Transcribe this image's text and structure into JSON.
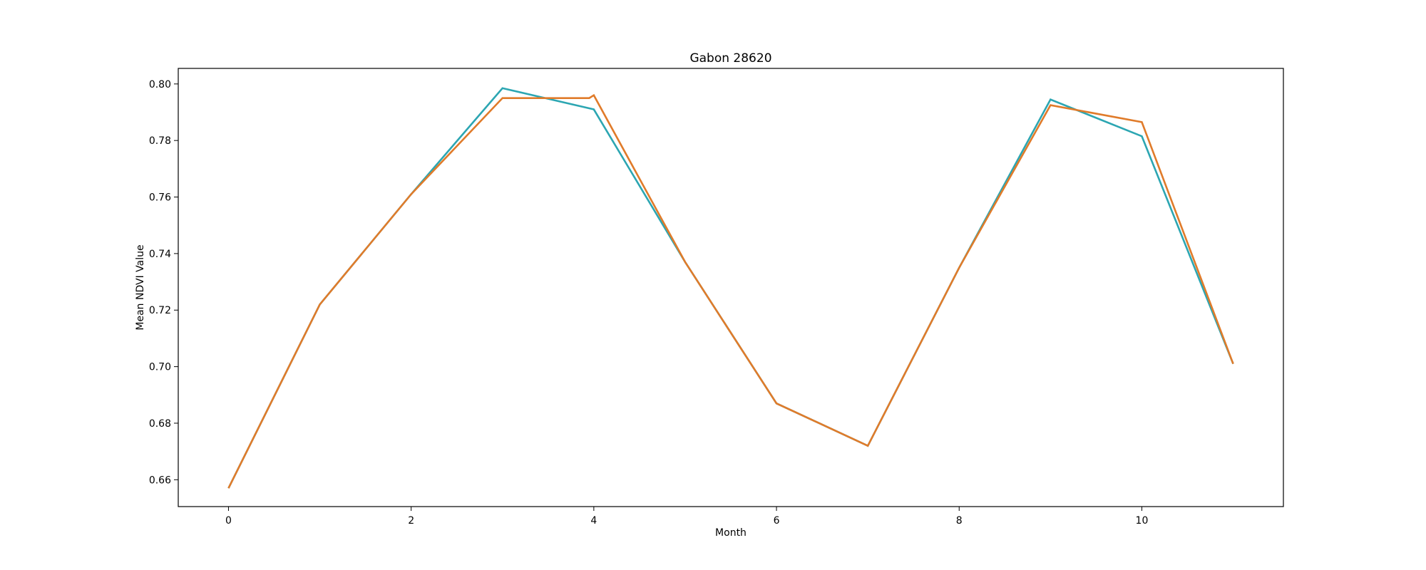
{
  "chart_data": {
    "type": "line",
    "title": "Gabon 28620",
    "xlabel": "Month",
    "ylabel": "Mean NDVI Value",
    "xlim": [
      -0.55,
      11.55
    ],
    "ylim": [
      0.6505,
      0.8055
    ],
    "xticks": [
      0,
      2,
      4,
      6,
      8,
      10
    ],
    "yticks": [
      0.66,
      0.68,
      0.7,
      0.72,
      0.74,
      0.76,
      0.78,
      0.8
    ],
    "ytick_labels": [
      "0.66",
      "0.68",
      "0.70",
      "0.72",
      "0.74",
      "0.76",
      "0.78",
      "0.80"
    ],
    "grid": false,
    "series": [
      {
        "color": "#2ca6b2",
        "x": [
          0,
          1,
          2,
          3,
          4,
          5,
          6,
          7,
          8,
          9,
          10,
          11
        ],
        "y": [
          0.657,
          0.722,
          0.761,
          0.7985,
          0.791,
          0.737,
          0.687,
          0.672,
          0.735,
          0.7945,
          0.7815,
          0.701
        ]
      },
      {
        "color": "#e07b2a",
        "x": [
          0,
          1,
          2,
          3,
          3.5,
          3.95,
          4,
          5,
          6,
          7,
          8,
          9,
          10,
          11
        ],
        "y": [
          0.657,
          0.722,
          0.761,
          0.795,
          0.795,
          0.795,
          0.796,
          0.737,
          0.687,
          0.672,
          0.735,
          0.7925,
          0.7865,
          0.701
        ]
      }
    ]
  }
}
